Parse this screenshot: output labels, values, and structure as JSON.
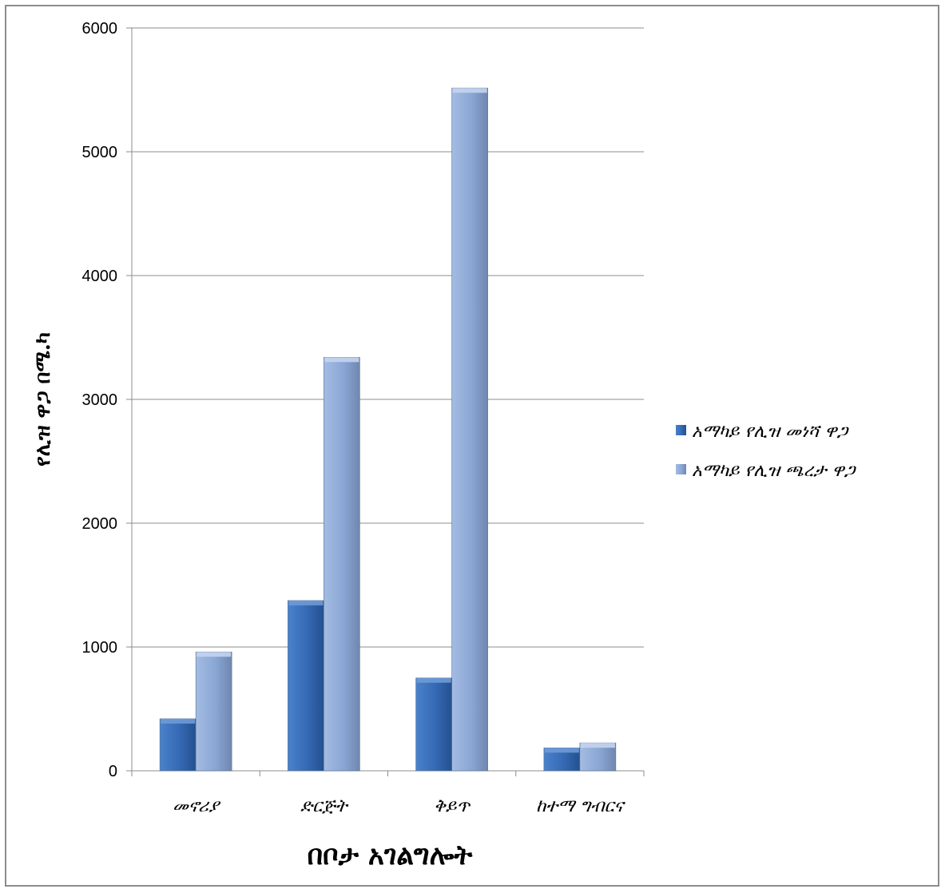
{
  "chart_data": {
    "type": "bar",
    "categories": [
      "መኖሪያ",
      "ድርጅት",
      "ቅይጥ",
      "ከተማ ግብርና"
    ],
    "series": [
      {
        "name": "አማካይ የሊዝ መነሻ ዋጋ",
        "values": [
          420,
          1375,
          750,
          185
        ],
        "color": "#3a6fb8"
      },
      {
        "name": "አማካይ የሊዝ ጫረታ ዋጋ",
        "values": [
          960,
          3340,
          5515,
          225
        ],
        "color": "#8aa6d4"
      }
    ],
    "xlabel": "በቦታ አገልግሎት",
    "ylabel": "የሊዝ ዋጋ በሜ.ካ",
    "ylim": [
      0,
      6000
    ],
    "yticks": [
      0,
      1000,
      2000,
      3000,
      4000,
      5000,
      6000
    ],
    "grid": true,
    "legend_position": "right"
  }
}
